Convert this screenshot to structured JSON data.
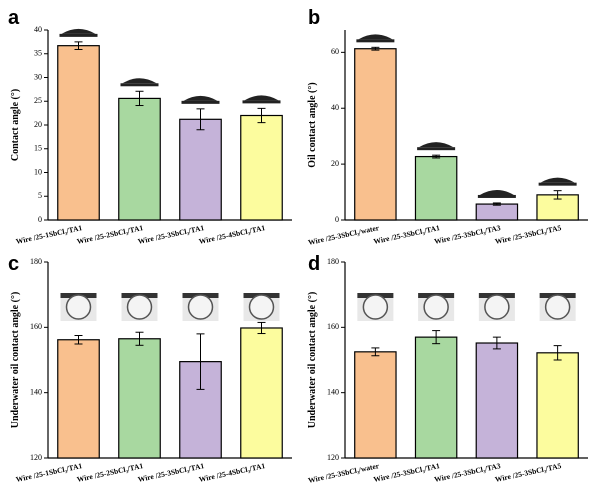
{
  "chart_data": [
    {
      "type": "bar",
      "label": "a",
      "y_label": "Contact angle (°)",
      "categories": [
        "Wire /25-1SbCl₃/TA1",
        "Wire /25-2SbCl₃/TA1",
        "Wire /25-3SbCl₃/TA1",
        "Wire /25-4SbCl₃/TA1"
      ],
      "values": [
        36.7,
        25.6,
        21.2,
        22.0
      ],
      "errors": [
        0.8,
        1.5,
        2.2,
        1.5
      ],
      "colors": [
        "#f9c08e",
        "#a8d8a0",
        "#c5b3d9",
        "#fcfc9e"
      ],
      "ylim": [
        0,
        40
      ],
      "yticks": [
        0,
        5,
        10,
        15,
        20,
        25,
        30,
        35,
        40
      ]
    },
    {
      "type": "bar",
      "label": "b",
      "y_label": "Oil contact angle (°)",
      "categories": [
        "Wire /25-3SbCl₃/water",
        "Wire /25-3SbCl₃/TA1",
        "Wire /25-3SbCl₃/TA3",
        "Wire /25-3SbCl₃/TA5"
      ],
      "values": [
        61.3,
        22.7,
        5.7,
        9.0
      ],
      "errors": [
        0.5,
        0.5,
        0.4,
        1.5
      ],
      "colors": [
        "#f9c08e",
        "#a8d8a0",
        "#c5b3d9",
        "#fcfc9e"
      ],
      "ylim": [
        0,
        68
      ],
      "yticks": [
        0,
        20,
        40,
        60
      ]
    },
    {
      "type": "bar",
      "label": "c",
      "y_label": "Underwater oil contact angle (°)",
      "categories": [
        "Wire /25-1SbCl₃/TA1",
        "Wire /25-2SbCl₃/TA1",
        "Wire /25-3SbCl₃/TA1",
        "Wire /25-4SbCl₃/TA1"
      ],
      "values": [
        156.2,
        156.5,
        149.5,
        159.8
      ],
      "errors": [
        1.3,
        2.0,
        8.5,
        1.7
      ],
      "colors": [
        "#f9c08e",
        "#a8d8a0",
        "#c5b3d9",
        "#fcfc9e"
      ],
      "ylim": [
        120,
        180
      ],
      "yticks": [
        120,
        140,
        160,
        180
      ]
    },
    {
      "type": "bar",
      "label": "d",
      "y_label": "Underwater oil contact angle (°)",
      "categories": [
        "Wire /25-3SbCl₃/water",
        "Wire /25-3SbCl₃/TA1",
        "Wire /25-3SbCl₃/TA3",
        "Wire /25-3SbCl₃/TA5"
      ],
      "values": [
        152.5,
        157.0,
        155.2,
        152.2
      ],
      "errors": [
        1.2,
        2.0,
        1.8,
        2.2
      ],
      "colors": [
        "#f9c08e",
        "#a8d8a0",
        "#c5b3d9",
        "#fcfc9e"
      ],
      "ylim": [
        120,
        180
      ],
      "yticks": [
        120,
        140,
        160,
        180
      ]
    }
  ]
}
